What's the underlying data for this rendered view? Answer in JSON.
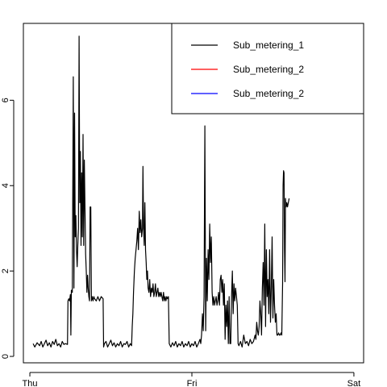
{
  "chart_data": {
    "type": "line",
    "title": "",
    "xlabel": "",
    "ylabel": "",
    "xlim": [
      -0.04,
      2.06
    ],
    "ylim": [
      -0.15,
      7.8
    ],
    "grid": false,
    "legend_placement": "top-right",
    "x_ticks": [
      {
        "value": 0,
        "label": "Thu"
      },
      {
        "value": 1,
        "label": "Fri"
      },
      {
        "value": 2,
        "label": "Sat"
      }
    ],
    "y_ticks": [
      {
        "value": 0,
        "label": "0"
      },
      {
        "value": 2,
        "label": "2"
      },
      {
        "value": 4,
        "label": "4"
      },
      {
        "value": 6,
        "label": "6"
      }
    ],
    "legend": [
      {
        "label": "Sub_metering_1",
        "color": "#000000"
      },
      {
        "label": "Sub_metering_2",
        "color": "#ff0000"
      },
      {
        "label": "Sub_metering_2",
        "color": "#0000ff"
      }
    ],
    "series": [
      {
        "color": "#000000",
        "points": [
          [
            0.02,
            0.3
          ],
          [
            0.03,
            0.22
          ],
          [
            0.045,
            0.32
          ],
          [
            0.06,
            0.25
          ],
          [
            0.07,
            0.35
          ],
          [
            0.08,
            0.22
          ],
          [
            0.09,
            0.3
          ],
          [
            0.1,
            0.38
          ],
          [
            0.11,
            0.25
          ],
          [
            0.12,
            0.32
          ],
          [
            0.13,
            0.22
          ],
          [
            0.14,
            0.35
          ],
          [
            0.15,
            0.28
          ],
          [
            0.16,
            0.4
          ],
          [
            0.17,
            0.25
          ],
          [
            0.18,
            0.3
          ],
          [
            0.19,
            0.22
          ],
          [
            0.2,
            0.35
          ],
          [
            0.21,
            0.28
          ],
          [
            0.22,
            0.3
          ],
          [
            0.232,
            0.28
          ],
          [
            0.235,
            1.3
          ],
          [
            0.24,
            1.35
          ],
          [
            0.245,
            1.3
          ],
          [
            0.25,
            1.45
          ],
          [
            0.253,
            0.5
          ],
          [
            0.256,
            1.55
          ],
          [
            0.262,
            1.5
          ],
          [
            0.268,
            6.55
          ],
          [
            0.272,
            1.6
          ],
          [
            0.276,
            5.7
          ],
          [
            0.28,
            2.8
          ],
          [
            0.284,
            3.3
          ],
          [
            0.288,
            2.5
          ],
          [
            0.292,
            2.1
          ],
          [
            0.296,
            2.6
          ],
          [
            0.3,
            3.0
          ],
          [
            0.304,
            7.5
          ],
          [
            0.308,
            3.6
          ],
          [
            0.312,
            4.8
          ],
          [
            0.316,
            2.6
          ],
          [
            0.32,
            4.3
          ],
          [
            0.324,
            2.8
          ],
          [
            0.328,
            5.2
          ],
          [
            0.332,
            2.6
          ],
          [
            0.336,
            4.6
          ],
          [
            0.34,
            3.5
          ],
          [
            0.344,
            2.4
          ],
          [
            0.348,
            2.0
          ],
          [
            0.352,
            1.5
          ],
          [
            0.356,
            1.9
          ],
          [
            0.36,
            1.6
          ],
          [
            0.364,
            1.4
          ],
          [
            0.368,
            1.3
          ],
          [
            0.372,
            3.5
          ],
          [
            0.376,
            3.5
          ],
          [
            0.38,
            1.3
          ],
          [
            0.385,
            1.4
          ],
          [
            0.39,
            1.3
          ],
          [
            0.395,
            1.4
          ],
          [
            0.4,
            1.35
          ],
          [
            0.41,
            1.3
          ],
          [
            0.42,
            1.4
          ],
          [
            0.43,
            1.3
          ],
          [
            0.44,
            1.4
          ],
          [
            0.452,
            1.35
          ],
          [
            0.455,
            0.22
          ],
          [
            0.46,
            0.3
          ],
          [
            0.47,
            0.35
          ],
          [
            0.48,
            0.22
          ],
          [
            0.49,
            0.3
          ],
          [
            0.5,
            0.38
          ],
          [
            0.51,
            0.25
          ],
          [
            0.52,
            0.32
          ],
          [
            0.53,
            0.22
          ],
          [
            0.54,
            0.3
          ],
          [
            0.55,
            0.25
          ],
          [
            0.56,
            0.35
          ],
          [
            0.57,
            0.22
          ],
          [
            0.58,
            0.3
          ],
          [
            0.59,
            0.28
          ],
          [
            0.6,
            0.35
          ],
          [
            0.61,
            0.22
          ],
          [
            0.62,
            0.3
          ],
          [
            0.628,
            0.25
          ],
          [
            0.632,
            0.7
          ],
          [
            0.636,
            1.0
          ],
          [
            0.64,
            1.5
          ],
          [
            0.645,
            2.0
          ],
          [
            0.65,
            2.3
          ],
          [
            0.655,
            2.5
          ],
          [
            0.66,
            2.7
          ],
          [
            0.665,
            3.0
          ],
          [
            0.67,
            2.5
          ],
          [
            0.675,
            3.4
          ],
          [
            0.68,
            2.9
          ],
          [
            0.685,
            3.2
          ],
          [
            0.69,
            2.8
          ],
          [
            0.695,
            3.0
          ],
          [
            0.698,
            4.45
          ],
          [
            0.702,
            3.0
          ],
          [
            0.706,
            2.6
          ],
          [
            0.71,
            3.6
          ],
          [
            0.714,
            2.5
          ],
          [
            0.718,
            2.2
          ],
          [
            0.722,
            1.8
          ],
          [
            0.726,
            2.0
          ],
          [
            0.73,
            1.6
          ],
          [
            0.735,
            1.5
          ],
          [
            0.74,
            1.8
          ],
          [
            0.745,
            1.4
          ],
          [
            0.75,
            1.6
          ],
          [
            0.755,
            1.5
          ],
          [
            0.76,
            1.7
          ],
          [
            0.765,
            1.4
          ],
          [
            0.77,
            1.5
          ],
          [
            0.775,
            1.7
          ],
          [
            0.78,
            1.4
          ],
          [
            0.785,
            1.5
          ],
          [
            0.79,
            1.6
          ],
          [
            0.795,
            1.4
          ],
          [
            0.8,
            1.5
          ],
          [
            0.805,
            1.4
          ],
          [
            0.81,
            1.5
          ],
          [
            0.815,
            1.4
          ],
          [
            0.82,
            1.3
          ],
          [
            0.825,
            1.5
          ],
          [
            0.83,
            1.3
          ],
          [
            0.835,
            1.4
          ],
          [
            0.84,
            1.3
          ],
          [
            0.845,
            1.4
          ],
          [
            0.85,
            1.35
          ],
          [
            0.855,
            1.4
          ],
          [
            0.86,
            0.3
          ],
          [
            0.87,
            0.22
          ],
          [
            0.88,
            0.32
          ],
          [
            0.89,
            0.25
          ],
          [
            0.9,
            0.35
          ],
          [
            0.91,
            0.22
          ],
          [
            0.92,
            0.3
          ],
          [
            0.93,
            0.25
          ],
          [
            0.94,
            0.35
          ],
          [
            0.95,
            0.22
          ],
          [
            0.96,
            0.3
          ],
          [
            0.97,
            0.25
          ],
          [
            0.98,
            0.35
          ],
          [
            0.99,
            0.22
          ],
          [
            1.0,
            0.3
          ],
          [
            1.01,
            0.25
          ],
          [
            1.02,
            0.35
          ],
          [
            1.03,
            0.22
          ],
          [
            1.04,
            0.3
          ],
          [
            1.05,
            0.4
          ],
          [
            1.055,
            0.3
          ],
          [
            1.06,
            0.5
          ],
          [
            1.065,
            1.0
          ],
          [
            1.07,
            0.6
          ],
          [
            1.075,
            1.4
          ],
          [
            1.08,
            5.4
          ],
          [
            1.085,
            0.6
          ],
          [
            1.09,
            2.3
          ],
          [
            1.095,
            1.3
          ],
          [
            1.1,
            2.5
          ],
          [
            1.105,
            1.8
          ],
          [
            1.11,
            3.1
          ],
          [
            1.115,
            2.2
          ],
          [
            1.12,
            2.8
          ],
          [
            1.125,
            1.5
          ],
          [
            1.13,
            1.2
          ],
          [
            1.135,
            1.4
          ],
          [
            1.14,
            1.2
          ],
          [
            1.145,
            1.3
          ],
          [
            1.15,
            1.4
          ],
          [
            1.155,
            1.2
          ],
          [
            1.16,
            1.3
          ],
          [
            1.165,
            1.5
          ],
          [
            1.17,
            1.2
          ],
          [
            1.175,
            1.8
          ],
          [
            1.18,
            1.9
          ],
          [
            1.185,
            1.5
          ],
          [
            1.19,
            1.8
          ],
          [
            1.195,
            1.2
          ],
          [
            1.2,
            1.7
          ],
          [
            1.205,
            0.4
          ],
          [
            1.21,
            1.2
          ],
          [
            1.215,
            0.7
          ],
          [
            1.22,
            1.3
          ],
          [
            1.225,
            0.3
          ],
          [
            1.23,
            1.4
          ],
          [
            1.235,
            0.3
          ],
          [
            1.24,
            0.3
          ],
          [
            1.245,
            1.4
          ],
          [
            1.25,
            2.0
          ],
          [
            1.255,
            1.0
          ],
          [
            1.26,
            1.7
          ],
          [
            1.265,
            1.3
          ],
          [
            1.27,
            1.6
          ],
          [
            1.275,
            1.4
          ],
          [
            1.28,
            1.2
          ],
          [
            1.285,
            0.3
          ],
          [
            1.29,
            0.25
          ],
          [
            1.3,
            0.35
          ],
          [
            1.31,
            0.22
          ],
          [
            1.32,
            0.5
          ],
          [
            1.33,
            0.3
          ],
          [
            1.34,
            0.35
          ],
          [
            1.35,
            0.25
          ],
          [
            1.36,
            0.4
          ],
          [
            1.37,
            0.3
          ],
          [
            1.38,
            0.35
          ],
          [
            1.39,
            0.5
          ],
          [
            1.395,
            0.4
          ],
          [
            1.4,
            0.8
          ],
          [
            1.405,
            0.6
          ],
          [
            1.41,
            0.5
          ],
          [
            1.415,
            0.7
          ],
          [
            1.42,
            1.3
          ],
          [
            1.425,
            1.0
          ],
          [
            1.43,
            0.5
          ],
          [
            1.435,
            1.6
          ],
          [
            1.44,
            2.2
          ],
          [
            1.445,
            1.2
          ],
          [
            1.45,
            3.1
          ],
          [
            1.455,
            0.7
          ],
          [
            1.46,
            2.5
          ],
          [
            1.465,
            1.4
          ],
          [
            1.47,
            1.8
          ],
          [
            1.475,
            1.0
          ],
          [
            1.48,
            2.5
          ],
          [
            1.485,
            0.8
          ],
          [
            1.49,
            1.6
          ],
          [
            1.495,
            2.8
          ],
          [
            1.5,
            0.9
          ],
          [
            1.505,
            1.8
          ],
          [
            1.51,
            1.2
          ],
          [
            1.515,
            0.8
          ],
          [
            1.52,
            1.0
          ],
          [
            1.525,
            0.5
          ],
          [
            1.53,
            0.5
          ],
          [
            1.535,
            0.55
          ],
          [
            1.54,
            0.5
          ],
          [
            1.545,
            0.5
          ],
          [
            1.55,
            0.55
          ],
          [
            1.555,
            0.5
          ],
          [
            1.56,
            1.7
          ],
          [
            1.563,
            4.0
          ],
          [
            1.566,
            4.35
          ],
          [
            1.569,
            4.3
          ],
          [
            1.572,
            2.5
          ],
          [
            1.575,
            1.75
          ],
          [
            1.578,
            3.7
          ],
          [
            1.582,
            3.5
          ],
          [
            1.586,
            3.6
          ],
          [
            1.59,
            3.5
          ],
          [
            1.595,
            3.6
          ],
          [
            1.6,
            3.7
          ]
        ]
      }
    ]
  }
}
